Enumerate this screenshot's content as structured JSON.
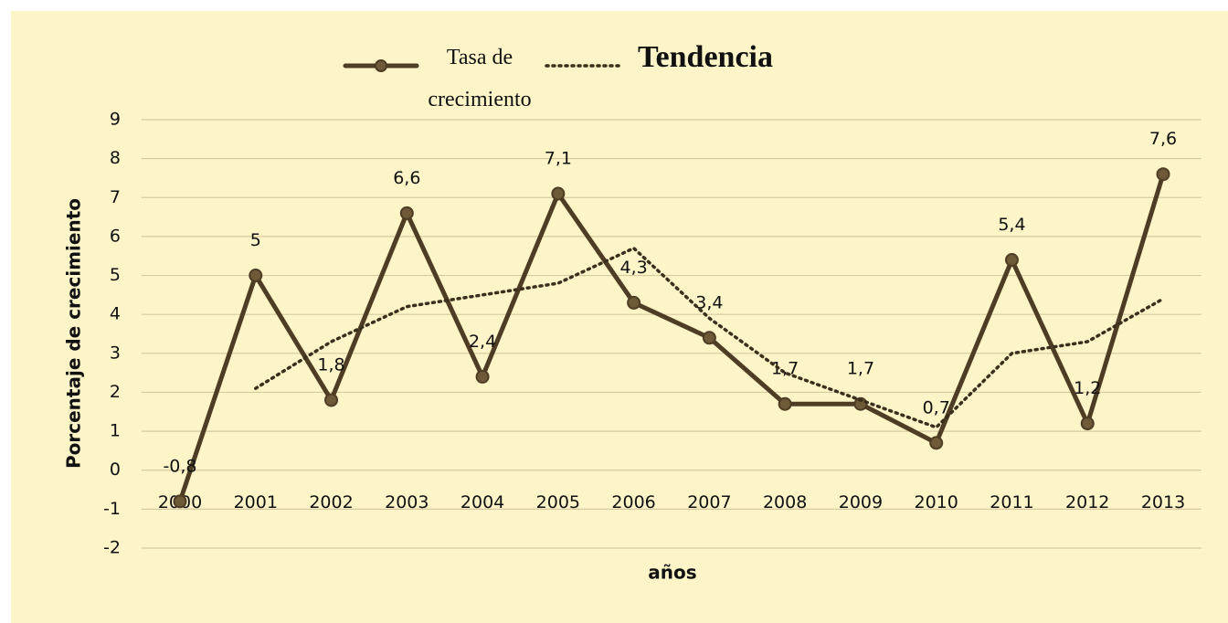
{
  "chart_data": {
    "type": "line",
    "x_label": "años",
    "y_label": "Porcentaje de crecimiento",
    "categories": [
      "2000",
      "2001",
      "2002",
      "2003",
      "2004",
      "2005",
      "2006",
      "2007",
      "2008",
      "2009",
      "2010",
      "2011",
      "2012",
      "2013"
    ],
    "series": [
      {
        "name": "Tasa de crecimiento",
        "color": "#4e3d24",
        "style": "solid",
        "values": [
          -0.8,
          5,
          1.8,
          6.6,
          2.4,
          7.1,
          4.3,
          3.4,
          1.7,
          1.7,
          0.7,
          5.4,
          1.2,
          7.6
        ],
        "value_labels": [
          "-0,8",
          "5",
          "1,8",
          "6,6",
          "2,4",
          "7,1",
          "4,3",
          "3,4",
          "1,7",
          "1,7",
          "0,7",
          "5,4",
          "1,2",
          "7,6"
        ]
      },
      {
        "name": "Tendencia",
        "color": "#3a2e1c",
        "style": "dotted",
        "values": [
          null,
          2.1,
          3.3,
          4.2,
          4.5,
          4.8,
          5.7,
          3.9,
          2.5,
          1.8,
          1.1,
          3.0,
          3.3,
          4.4
        ]
      }
    ],
    "ylim": [
      -2,
      9
    ],
    "yticks": [
      -2,
      -1,
      0,
      1,
      2,
      3,
      4,
      5,
      6,
      7,
      8,
      9
    ],
    "grid": true
  }
}
